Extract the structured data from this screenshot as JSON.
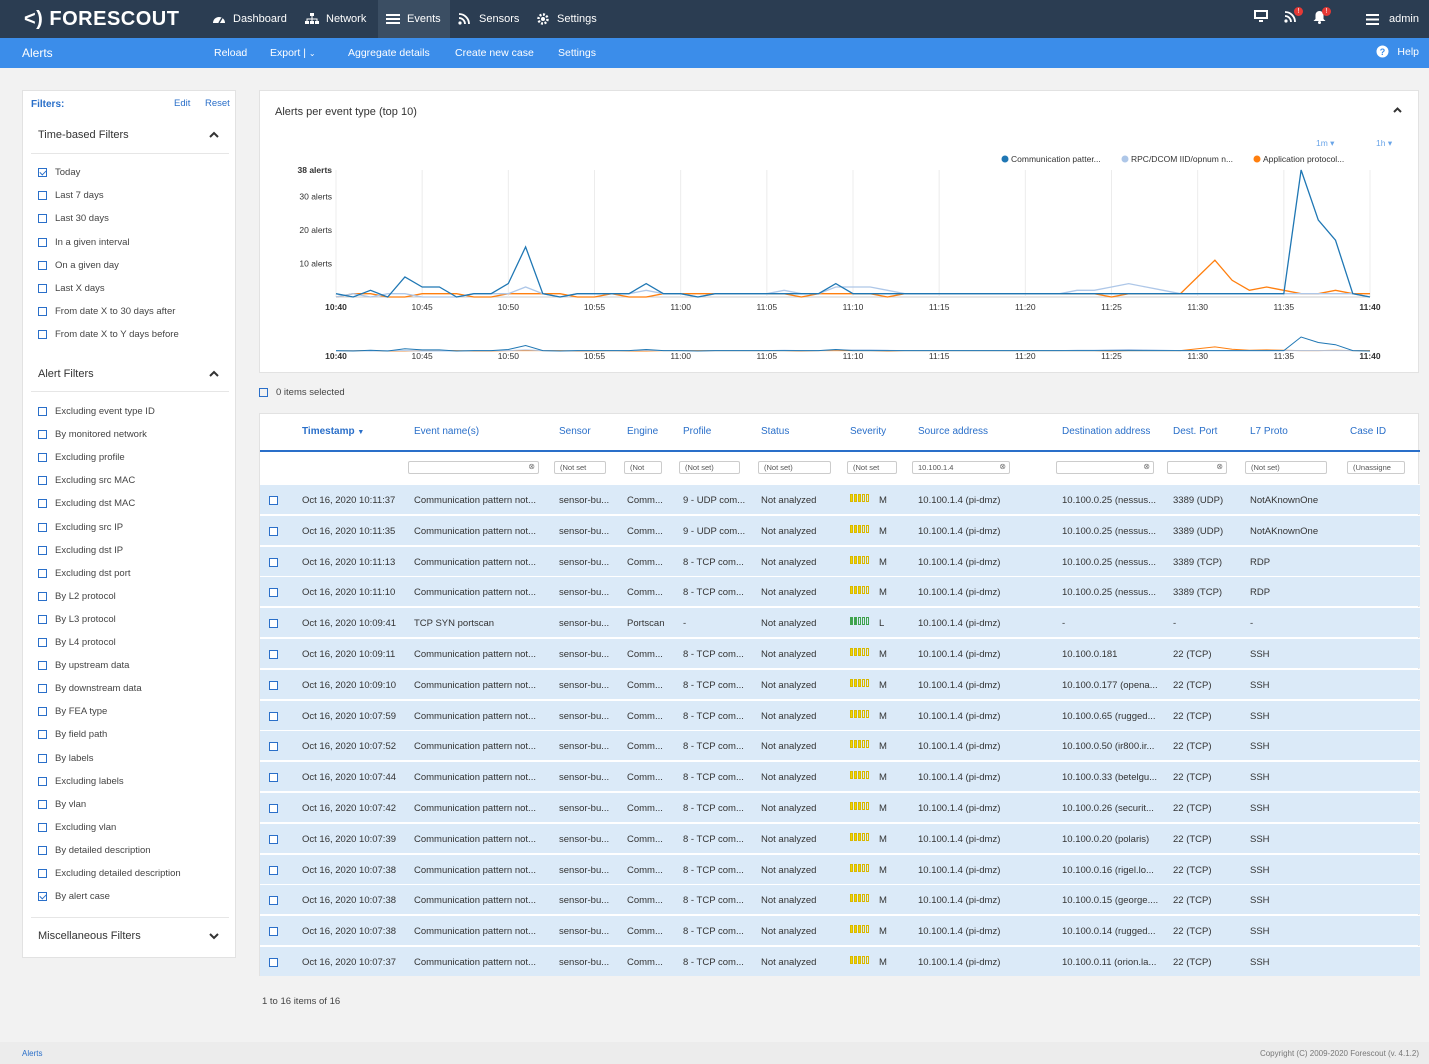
{
  "brand": {
    "logo": "<) FORESCOUT"
  },
  "nav": {
    "dashboard": "Dashboard",
    "network": "Network",
    "events": "Events",
    "sensors": "Sensors",
    "settings": "Settings"
  },
  "user": {
    "name": "admin"
  },
  "subbar": {
    "title": "Alerts",
    "reload": "Reload",
    "export": "Export |",
    "aggregate": "Aggregate details",
    "create_case": "Create new case",
    "settings": "Settings",
    "help": "Help"
  },
  "filters": {
    "title": "Filters:",
    "edit": "Edit",
    "reset": "Reset",
    "time_title": "Time-based Filters",
    "time_items": [
      {
        "label": "Today",
        "checked": true
      },
      {
        "label": "Last 7 days",
        "checked": false
      },
      {
        "label": "Last 30 days",
        "checked": false
      },
      {
        "label": "In a given interval",
        "checked": false
      },
      {
        "label": "On a given day",
        "checked": false
      },
      {
        "label": "Last X days",
        "checked": false
      },
      {
        "label": "From date X to 30 days after",
        "checked": false
      },
      {
        "label": "From date X to Y days before",
        "checked": false
      }
    ],
    "alert_title": "Alert Filters",
    "alert_items": [
      {
        "label": "Excluding event type ID",
        "checked": false
      },
      {
        "label": "By monitored network",
        "checked": false
      },
      {
        "label": "Excluding profile",
        "checked": false
      },
      {
        "label": "Excluding src MAC",
        "checked": false
      },
      {
        "label": "Excluding dst MAC",
        "checked": false
      },
      {
        "label": "Excluding src IP",
        "checked": false
      },
      {
        "label": "Excluding dst IP",
        "checked": false
      },
      {
        "label": "Excluding dst port",
        "checked": false
      },
      {
        "label": "By L2 protocol",
        "checked": false
      },
      {
        "label": "By L3 protocol",
        "checked": false
      },
      {
        "label": "By L4 protocol",
        "checked": false
      },
      {
        "label": "By upstream data",
        "checked": false
      },
      {
        "label": "By downstream data",
        "checked": false
      },
      {
        "label": "By FEA type",
        "checked": false
      },
      {
        "label": "By field path",
        "checked": false
      },
      {
        "label": "By labels",
        "checked": false
      },
      {
        "label": "Excluding labels",
        "checked": false
      },
      {
        "label": "By vlan",
        "checked": false
      },
      {
        "label": "Excluding vlan",
        "checked": false
      },
      {
        "label": "By detailed description",
        "checked": false
      },
      {
        "label": "Excluding detailed description",
        "checked": false
      },
      {
        "label": "By alert case",
        "checked": true
      }
    ],
    "misc_title": "Miscellaneous Filters"
  },
  "chart_data": {
    "type": "line",
    "title": "Alerts per event type (top 10)",
    "range_buttons": [
      "1m",
      "1h"
    ],
    "ylabel": "alerts",
    "y_ticks": [
      "38 alerts",
      "30 alerts",
      "20 alerts",
      "10 alerts"
    ],
    "y_tick_values": [
      38,
      30,
      20,
      10
    ],
    "ylim": [
      0,
      38
    ],
    "x_ticks": [
      "10:40",
      "10:45",
      "10:50",
      "10:55",
      "11:00",
      "11:05",
      "11:10",
      "11:15",
      "11:20",
      "11:25",
      "11:30",
      "11:35",
      "11:40"
    ],
    "xlim": [
      0,
      60
    ],
    "series": [
      {
        "name": "Communication patter...",
        "color": "#1f77b4",
        "values": [
          1,
          0,
          2,
          0,
          6,
          3,
          3,
          0,
          1,
          1,
          4,
          15,
          1,
          0,
          1,
          1,
          1,
          1,
          4,
          1,
          1,
          0,
          1,
          1,
          1,
          1,
          1,
          1,
          1,
          4,
          1,
          1,
          1,
          1,
          1,
          1,
          1,
          1,
          1,
          1,
          1,
          1,
          1,
          1,
          1,
          1,
          1,
          1,
          1,
          1,
          1,
          1,
          1,
          1,
          1,
          1,
          38,
          23,
          17,
          1,
          0
        ]
      },
      {
        "name": "RPC/DCOM IID/opnum n...",
        "color": "#aec7e8",
        "values": [
          0,
          1,
          0,
          1,
          1,
          0,
          0,
          0,
          1,
          1,
          1,
          3,
          1,
          0,
          1,
          1,
          1,
          1,
          2,
          1,
          1,
          0,
          1,
          1,
          1,
          1,
          2,
          1,
          1,
          3,
          3,
          3,
          2,
          1,
          1,
          1,
          1,
          1,
          1,
          1,
          1,
          1,
          1,
          2,
          2,
          3,
          4,
          3,
          2,
          1,
          1,
          1,
          1,
          1,
          1,
          1,
          1,
          1,
          1,
          1,
          0
        ]
      },
      {
        "name": "Application protocol...",
        "color": "#ff7f0e",
        "values": [
          0,
          1,
          1,
          0,
          0,
          1,
          1,
          1,
          0,
          0,
          1,
          1,
          1,
          1,
          0,
          0,
          1,
          0,
          0,
          1,
          1,
          1,
          1,
          1,
          1,
          1,
          1,
          0,
          1,
          1,
          1,
          1,
          0,
          1,
          1,
          1,
          1,
          1,
          1,
          1,
          1,
          1,
          1,
          1,
          1,
          0,
          1,
          1,
          1,
          1,
          6,
          11,
          5,
          2,
          3,
          2,
          1,
          1,
          2,
          1,
          1
        ]
      }
    ]
  },
  "selection": {
    "text": "0 items selected"
  },
  "table": {
    "headers": {
      "timestamp": "Timestamp",
      "event": "Event name(s)",
      "sensor": "Sensor",
      "engine": "Engine",
      "profile": "Profile",
      "status": "Status",
      "severity": "Severity",
      "src": "Source address",
      "dst": "Destination address",
      "port": "Dest. Port",
      "l7": "L7 Proto",
      "case": "Case ID"
    },
    "filter_values": {
      "sensor": "(Not set",
      "engine": "(Not",
      "profile": "(Not set)",
      "status": "(Not set)",
      "severity": "(Not set",
      "src": "10.100.1.4",
      "l7": "(Not set)",
      "case": "(Unassigne"
    },
    "rows": [
      {
        "ts": "Oct 16, 2020 10:11:37",
        "event": "Communication pattern not...",
        "sensor": "sensor-bu...",
        "engine": "Comm...",
        "profile": "9 - UDP com...",
        "status": "Not analyzed",
        "sev": "M",
        "src": "10.100.1.4 (pi-dmz)",
        "dst": "10.100.0.25 (nessus...",
        "port": "3389 (UDP)",
        "l7": "NotAKnownOne"
      },
      {
        "ts": "Oct 16, 2020 10:11:35",
        "event": "Communication pattern not...",
        "sensor": "sensor-bu...",
        "engine": "Comm...",
        "profile": "9 - UDP com...",
        "status": "Not analyzed",
        "sev": "M",
        "src": "10.100.1.4 (pi-dmz)",
        "dst": "10.100.0.25 (nessus...",
        "port": "3389 (UDP)",
        "l7": "NotAKnownOne"
      },
      {
        "ts": "Oct 16, 2020 10:11:13",
        "event": "Communication pattern not...",
        "sensor": "sensor-bu...",
        "engine": "Comm...",
        "profile": "8 - TCP com...",
        "status": "Not analyzed",
        "sev": "M",
        "src": "10.100.1.4 (pi-dmz)",
        "dst": "10.100.0.25 (nessus...",
        "port": "3389 (TCP)",
        "l7": "RDP"
      },
      {
        "ts": "Oct 16, 2020 10:11:10",
        "event": "Communication pattern not...",
        "sensor": "sensor-bu...",
        "engine": "Comm...",
        "profile": "8 - TCP com...",
        "status": "Not analyzed",
        "sev": "M",
        "src": "10.100.1.4 (pi-dmz)",
        "dst": "10.100.0.25 (nessus...",
        "port": "3389 (TCP)",
        "l7": "RDP"
      },
      {
        "ts": "Oct 16, 2020 10:09:41",
        "event": "TCP SYN portscan",
        "sensor": "sensor-bu...",
        "engine": "Portscan",
        "profile": "-",
        "status": "Not analyzed",
        "sev": "L",
        "src": "10.100.1.4 (pi-dmz)",
        "dst": "-",
        "port": "-",
        "l7": "-"
      },
      {
        "ts": "Oct 16, 2020 10:09:11",
        "event": "Communication pattern not...",
        "sensor": "sensor-bu...",
        "engine": "Comm...",
        "profile": "8 - TCP com...",
        "status": "Not analyzed",
        "sev": "M",
        "src": "10.100.1.4 (pi-dmz)",
        "dst": "10.100.0.181",
        "port": "22 (TCP)",
        "l7": "SSH"
      },
      {
        "ts": "Oct 16, 2020 10:09:10",
        "event": "Communication pattern not...",
        "sensor": "sensor-bu...",
        "engine": "Comm...",
        "profile": "8 - TCP com...",
        "status": "Not analyzed",
        "sev": "M",
        "src": "10.100.1.4 (pi-dmz)",
        "dst": "10.100.0.177 (opena...",
        "port": "22 (TCP)",
        "l7": "SSH"
      },
      {
        "ts": "Oct 16, 2020 10:07:59",
        "event": "Communication pattern not...",
        "sensor": "sensor-bu...",
        "engine": "Comm...",
        "profile": "8 - TCP com...",
        "status": "Not analyzed",
        "sev": "M",
        "src": "10.100.1.4 (pi-dmz)",
        "dst": "10.100.0.65 (rugged...",
        "port": "22 (TCP)",
        "l7": "SSH"
      },
      {
        "ts": "Oct 16, 2020 10:07:52",
        "event": "Communication pattern not...",
        "sensor": "sensor-bu...",
        "engine": "Comm...",
        "profile": "8 - TCP com...",
        "status": "Not analyzed",
        "sev": "M",
        "src": "10.100.1.4 (pi-dmz)",
        "dst": "10.100.0.50 (ir800.ir...",
        "port": "22 (TCP)",
        "l7": "SSH"
      },
      {
        "ts": "Oct 16, 2020 10:07:44",
        "event": "Communication pattern not...",
        "sensor": "sensor-bu...",
        "engine": "Comm...",
        "profile": "8 - TCP com...",
        "status": "Not analyzed",
        "sev": "M",
        "src": "10.100.1.4 (pi-dmz)",
        "dst": "10.100.0.33 (betelgu...",
        "port": "22 (TCP)",
        "l7": "SSH"
      },
      {
        "ts": "Oct 16, 2020 10:07:42",
        "event": "Communication pattern not...",
        "sensor": "sensor-bu...",
        "engine": "Comm...",
        "profile": "8 - TCP com...",
        "status": "Not analyzed",
        "sev": "M",
        "src": "10.100.1.4 (pi-dmz)",
        "dst": "10.100.0.26 (securit...",
        "port": "22 (TCP)",
        "l7": "SSH"
      },
      {
        "ts": "Oct 16, 2020 10:07:39",
        "event": "Communication pattern not...",
        "sensor": "sensor-bu...",
        "engine": "Comm...",
        "profile": "8 - TCP com...",
        "status": "Not analyzed",
        "sev": "M",
        "src": "10.100.1.4 (pi-dmz)",
        "dst": "10.100.0.20 (polaris)",
        "port": "22 (TCP)",
        "l7": "SSH"
      },
      {
        "ts": "Oct 16, 2020 10:07:38",
        "event": "Communication pattern not...",
        "sensor": "sensor-bu...",
        "engine": "Comm...",
        "profile": "8 - TCP com...",
        "status": "Not analyzed",
        "sev": "M",
        "src": "10.100.1.4 (pi-dmz)",
        "dst": "10.100.0.16 (rigel.lo...",
        "port": "22 (TCP)",
        "l7": "SSH"
      },
      {
        "ts": "Oct 16, 2020 10:07:38",
        "event": "Communication pattern not...",
        "sensor": "sensor-bu...",
        "engine": "Comm...",
        "profile": "8 - TCP com...",
        "status": "Not analyzed",
        "sev": "M",
        "src": "10.100.1.4 (pi-dmz)",
        "dst": "10.100.0.15 (george....",
        "port": "22 (TCP)",
        "l7": "SSH"
      },
      {
        "ts": "Oct 16, 2020 10:07:38",
        "event": "Communication pattern not...",
        "sensor": "sensor-bu...",
        "engine": "Comm...",
        "profile": "8 - TCP com...",
        "status": "Not analyzed",
        "sev": "M",
        "src": "10.100.1.4 (pi-dmz)",
        "dst": "10.100.0.14 (rugged...",
        "port": "22 (TCP)",
        "l7": "SSH"
      },
      {
        "ts": "Oct 16, 2020 10:07:37",
        "event": "Communication pattern not...",
        "sensor": "sensor-bu...",
        "engine": "Comm...",
        "profile": "8 - TCP com...",
        "status": "Not analyzed",
        "sev": "M",
        "src": "10.100.1.4 (pi-dmz)",
        "dst": "10.100.0.11 (orion.la...",
        "port": "22 (TCP)",
        "l7": "SSH"
      }
    ]
  },
  "pager": {
    "text": "1 to 16 items of 16"
  },
  "footer": {
    "left": "Alerts",
    "right": "Copyright (C) 2009-2020 Forescout (v. 4.1.2)"
  }
}
